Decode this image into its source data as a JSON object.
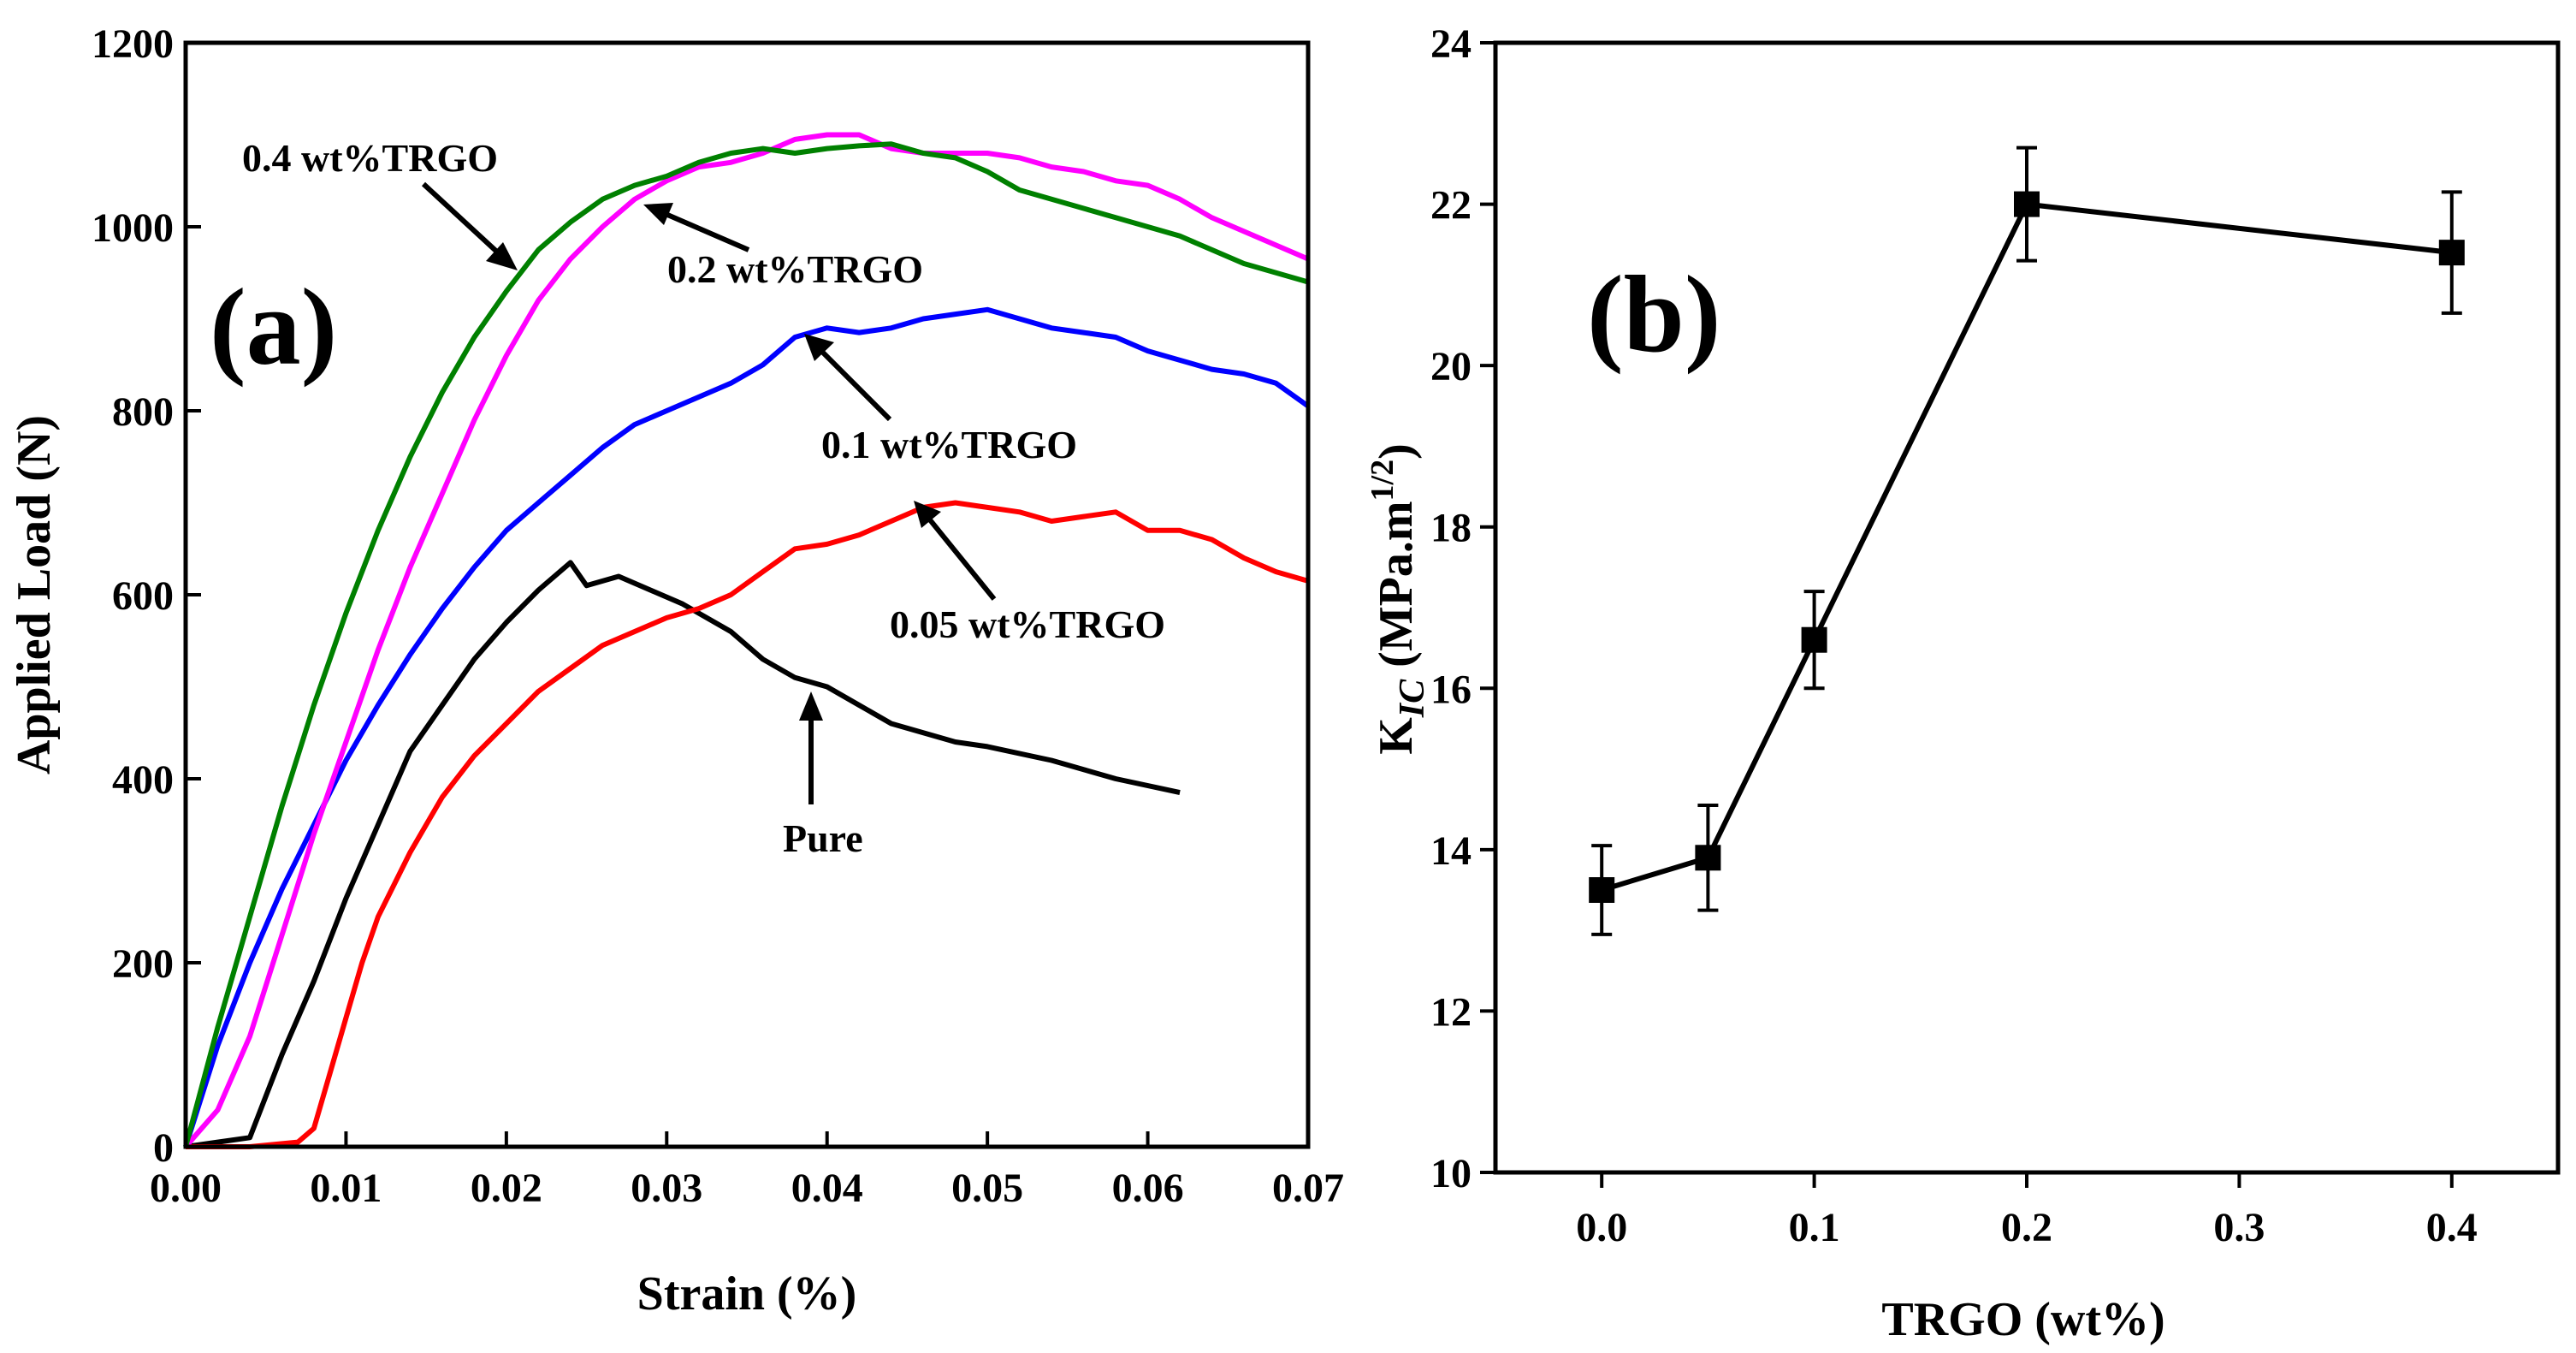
{
  "chart_data": [
    {
      "panel": "(a)",
      "type": "line",
      "xlabel": "Strain (%)",
      "ylabel": "Applied Load (N)",
      "xlim": [
        0,
        0.07
      ],
      "ylim": [
        0,
        1200
      ],
      "x_ticks": [
        "0.00",
        "0.01",
        "0.02",
        "0.03",
        "0.04",
        "0.05",
        "0.06",
        "0.07"
      ],
      "y_ticks": [
        "0",
        "200",
        "400",
        "600",
        "800",
        "1000",
        "1200"
      ],
      "series": [
        {
          "name": "Pure",
          "color": "#000000",
          "points": [
            [
              0,
              0
            ],
            [
              0.002,
              5
            ],
            [
              0.004,
              10
            ],
            [
              0.006,
              100
            ],
            [
              0.008,
              180
            ],
            [
              0.01,
              270
            ],
            [
              0.012,
              350
            ],
            [
              0.014,
              430
            ],
            [
              0.016,
              480
            ],
            [
              0.018,
              530
            ],
            [
              0.02,
              570
            ],
            [
              0.022,
              605
            ],
            [
              0.024,
              635
            ],
            [
              0.025,
              610
            ],
            [
              0.027,
              620
            ],
            [
              0.029,
              605
            ],
            [
              0.031,
              590
            ],
            [
              0.034,
              560
            ],
            [
              0.036,
              530
            ],
            [
              0.038,
              510
            ],
            [
              0.04,
              500
            ],
            [
              0.042,
              480
            ],
            [
              0.044,
              460
            ],
            [
              0.046,
              450
            ],
            [
              0.048,
              440
            ],
            [
              0.05,
              435
            ],
            [
              0.054,
              420
            ],
            [
              0.058,
              400
            ],
            [
              0.062,
              385
            ]
          ]
        },
        {
          "name": "0.05 wt%TRGO",
          "color": "#ff0000",
          "points": [
            [
              0,
              0
            ],
            [
              0.004,
              0
            ],
            [
              0.007,
              5
            ],
            [
              0.008,
              20
            ],
            [
              0.009,
              80
            ],
            [
              0.01,
              140
            ],
            [
              0.011,
              200
            ],
            [
              0.012,
              250
            ],
            [
              0.014,
              320
            ],
            [
              0.016,
              380
            ],
            [
              0.018,
              425
            ],
            [
              0.02,
              460
            ],
            [
              0.022,
              495
            ],
            [
              0.024,
              520
            ],
            [
              0.026,
              545
            ],
            [
              0.028,
              560
            ],
            [
              0.03,
              575
            ],
            [
              0.032,
              585
            ],
            [
              0.034,
              600
            ],
            [
              0.036,
              625
            ],
            [
              0.038,
              650
            ],
            [
              0.04,
              655
            ],
            [
              0.042,
              665
            ],
            [
              0.044,
              680
            ],
            [
              0.046,
              695
            ],
            [
              0.048,
              700
            ],
            [
              0.05,
              695
            ],
            [
              0.052,
              690
            ],
            [
              0.054,
              680
            ],
            [
              0.056,
              685
            ],
            [
              0.058,
              690
            ],
            [
              0.06,
              670
            ],
            [
              0.062,
              670
            ],
            [
              0.064,
              660
            ],
            [
              0.066,
              640
            ],
            [
              0.068,
              625
            ],
            [
              0.07,
              615
            ]
          ]
        },
        {
          "name": "0.1 wt%TRGO",
          "color": "#0000ff",
          "points": [
            [
              0,
              0
            ],
            [
              0.002,
              110
            ],
            [
              0.004,
              200
            ],
            [
              0.006,
              280
            ],
            [
              0.008,
              350
            ],
            [
              0.01,
              420
            ],
            [
              0.012,
              480
            ],
            [
              0.014,
              535
            ],
            [
              0.016,
              585
            ],
            [
              0.018,
              630
            ],
            [
              0.02,
              670
            ],
            [
              0.022,
              700
            ],
            [
              0.024,
              730
            ],
            [
              0.026,
              760
            ],
            [
              0.028,
              785
            ],
            [
              0.03,
              800
            ],
            [
              0.032,
              815
            ],
            [
              0.034,
              830
            ],
            [
              0.036,
              850
            ],
            [
              0.038,
              880
            ],
            [
              0.04,
              890
            ],
            [
              0.042,
              885
            ],
            [
              0.044,
              890
            ],
            [
              0.046,
              900
            ],
            [
              0.048,
              905
            ],
            [
              0.05,
              910
            ],
            [
              0.052,
              900
            ],
            [
              0.054,
              890
            ],
            [
              0.056,
              885
            ],
            [
              0.058,
              880
            ],
            [
              0.06,
              865
            ],
            [
              0.062,
              855
            ],
            [
              0.064,
              845
            ],
            [
              0.066,
              840
            ],
            [
              0.068,
              830
            ],
            [
              0.07,
              805
            ]
          ]
        },
        {
          "name": "0.2 wt%TRGO",
          "color": "#ff00ff",
          "points": [
            [
              0,
              0
            ],
            [
              0.002,
              40
            ],
            [
              0.004,
              120
            ],
            [
              0.006,
              230
            ],
            [
              0.008,
              340
            ],
            [
              0.01,
              440
            ],
            [
              0.012,
              540
            ],
            [
              0.014,
              630
            ],
            [
              0.016,
              710
            ],
            [
              0.018,
              790
            ],
            [
              0.02,
              860
            ],
            [
              0.022,
              920
            ],
            [
              0.024,
              965
            ],
            [
              0.026,
              1000
            ],
            [
              0.028,
              1030
            ],
            [
              0.03,
              1050
            ],
            [
              0.032,
              1065
            ],
            [
              0.034,
              1070
            ],
            [
              0.036,
              1080
            ],
            [
              0.038,
              1095
            ],
            [
              0.04,
              1100
            ],
            [
              0.042,
              1100
            ],
            [
              0.044,
              1085
            ],
            [
              0.046,
              1080
            ],
            [
              0.048,
              1080
            ],
            [
              0.05,
              1080
            ],
            [
              0.052,
              1075
            ],
            [
              0.054,
              1065
            ],
            [
              0.056,
              1060
            ],
            [
              0.058,
              1050
            ],
            [
              0.06,
              1045
            ],
            [
              0.062,
              1030
            ],
            [
              0.064,
              1010
            ],
            [
              0.066,
              995
            ],
            [
              0.068,
              980
            ],
            [
              0.07,
              965
            ]
          ]
        },
        {
          "name": "0.4 wt%TRGO",
          "color": "#008000",
          "points": [
            [
              0,
              0
            ],
            [
              0.002,
              130
            ],
            [
              0.004,
              250
            ],
            [
              0.006,
              370
            ],
            [
              0.008,
              480
            ],
            [
              0.01,
              580
            ],
            [
              0.012,
              670
            ],
            [
              0.014,
              750
            ],
            [
              0.016,
              820
            ],
            [
              0.018,
              880
            ],
            [
              0.02,
              930
            ],
            [
              0.022,
              975
            ],
            [
              0.024,
              1005
            ],
            [
              0.026,
              1030
            ],
            [
              0.028,
              1045
            ],
            [
              0.03,
              1055
            ],
            [
              0.032,
              1070
            ],
            [
              0.034,
              1080
            ],
            [
              0.036,
              1085
            ],
            [
              0.038,
              1080
            ],
            [
              0.04,
              1085
            ],
            [
              0.042,
              1088
            ],
            [
              0.044,
              1090
            ],
            [
              0.046,
              1080
            ],
            [
              0.048,
              1075
            ],
            [
              0.05,
              1060
            ],
            [
              0.052,
              1040
            ],
            [
              0.054,
              1030
            ],
            [
              0.056,
              1020
            ],
            [
              0.058,
              1010
            ],
            [
              0.06,
              1000
            ],
            [
              0.062,
              990
            ],
            [
              0.064,
              975
            ],
            [
              0.066,
              960
            ],
            [
              0.068,
              950
            ],
            [
              0.07,
              940
            ]
          ]
        }
      ],
      "annotations": [
        {
          "text": "0.4 wt%TRGO"
        },
        {
          "text": "0.2 wt%TRGO"
        },
        {
          "text": "0.1 wt%TRGO"
        },
        {
          "text": "0.05 wt%TRGO"
        },
        {
          "text": "Pure"
        }
      ]
    },
    {
      "panel": "(b)",
      "type": "line",
      "xlabel": "TRGO (wt%)",
      "ylabel_main": "K",
      "ylabel_sub": "IC",
      "ylabel_rest": " (MPa.m",
      "ylabel_sup": "1/2",
      "ylabel_close": ")",
      "xlim": [
        -0.05,
        0.45
      ],
      "ylim": [
        10,
        24
      ],
      "x_ticks": [
        "0.0",
        "0.1",
        "0.2",
        "0.3",
        "0.4"
      ],
      "y_ticks": [
        "10",
        "12",
        "14",
        "16",
        "18",
        "20",
        "22",
        "24"
      ],
      "series": [
        {
          "name": "KIC",
          "color": "#000000",
          "x": [
            0.0,
            0.05,
            0.1,
            0.2,
            0.4
          ],
          "y": [
            13.5,
            13.9,
            16.6,
            22.0,
            21.4
          ],
          "error": [
            0.55,
            0.65,
            0.6,
            0.7,
            0.75
          ]
        }
      ]
    }
  ]
}
